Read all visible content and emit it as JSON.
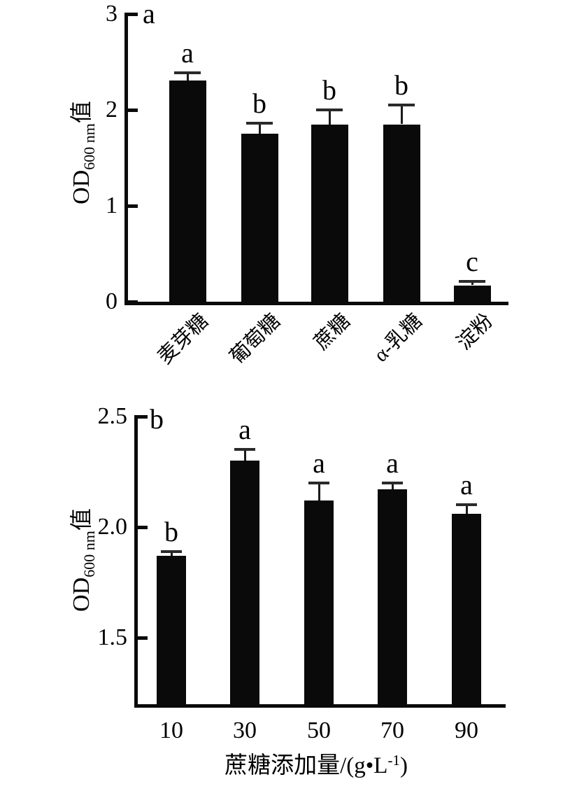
{
  "chart_data": [
    {
      "type": "bar",
      "panel": "a",
      "ylabel": "OD600 nm值",
      "ylabel_parts": {
        "main": "OD",
        "sub": "600 nm",
        "tail": "值"
      },
      "xlabel": "",
      "categories": [
        "麦芽糖",
        "葡萄糖",
        "蔗糖",
        "α-乳糖",
        "淀粉"
      ],
      "values": [
        2.31,
        1.75,
        1.85,
        1.85,
        0.17
      ],
      "errors": [
        0.08,
        0.11,
        0.15,
        0.2,
        0.04
      ],
      "sig_letters": [
        "a",
        "b",
        "b",
        "b",
        "c"
      ],
      "ylim": [
        0,
        3
      ],
      "yticks": [
        {
          "value": 0,
          "label": "0"
        },
        {
          "value": 1,
          "label": "1"
        },
        {
          "value": 2,
          "label": "2"
        },
        {
          "value": 3,
          "label": "3"
        }
      ],
      "bar_color": "#0a0a0a",
      "background_color": "#ffffff",
      "x_tick_rotation_deg": 45,
      "grid": false,
      "legend": false
    },
    {
      "type": "bar",
      "panel": "b",
      "ylabel": "OD600 nm值",
      "ylabel_parts": {
        "main": "OD",
        "sub": "600 nm",
        "tail": "值"
      },
      "xlabel": "蔗糖添加量/(g•L⁻¹)",
      "xlabel_parts": {
        "main": "蔗糖添加量/(g•L",
        "sup": "-1",
        "tail": ")"
      },
      "categories": [
        "10",
        "30",
        "50",
        "70",
        "90"
      ],
      "values": [
        1.87,
        2.3,
        2.12,
        2.17,
        2.06
      ],
      "errors": [
        0.02,
        0.05,
        0.08,
        0.03,
        0.04
      ],
      "sig_letters": [
        "b",
        "a",
        "a",
        "a",
        "a"
      ],
      "ylim": [
        1.2,
        2.5
      ],
      "yticks": [
        {
          "value": 1.5,
          "label": "1.5"
        },
        {
          "value": 2.0,
          "label": "2.0"
        },
        {
          "value": 2.5,
          "label": "2.5"
        }
      ],
      "bar_color": "#0a0a0a",
      "background_color": "#ffffff",
      "x_tick_rotation_deg": 0,
      "grid": false,
      "legend": false
    }
  ]
}
